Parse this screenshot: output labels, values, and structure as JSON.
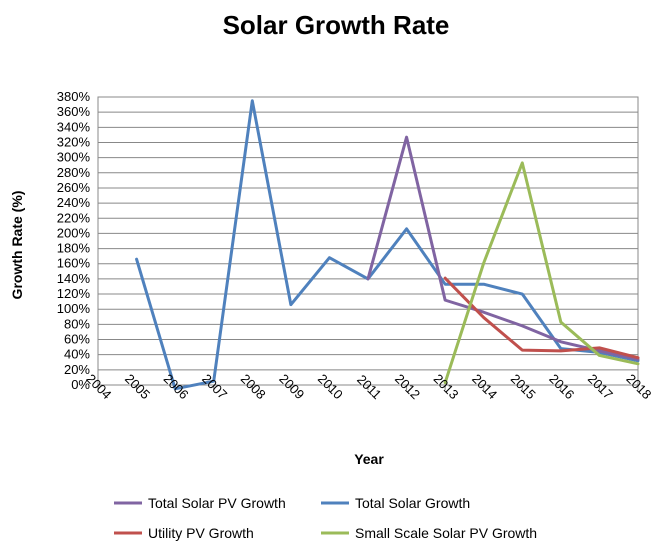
{
  "chart_data": {
    "type": "line",
    "title": "Solar Growth Rate",
    "xlabel": "Year",
    "ylabel": "Growth Rate (%)",
    "categories": [
      "2004",
      "2005",
      "2006",
      "2007",
      "2008",
      "2009",
      "2010",
      "2011",
      "2012",
      "2013",
      "2014",
      "2015",
      "2016",
      "2017",
      "2018"
    ],
    "y_ticks": [
      "0%",
      "20%",
      "40%",
      "60%",
      "80%",
      "100%",
      "120%",
      "140%",
      "160%",
      "180%",
      "200%",
      "220%",
      "240%",
      "260%",
      "280%",
      "300%",
      "320%",
      "340%",
      "360%",
      "380%"
    ],
    "ylim": [
      0,
      380
    ],
    "grid": true,
    "legend_position": "bottom",
    "series": [
      {
        "name": "Total Solar PV Growth",
        "color": "#8064a2",
        "values": [
          null,
          null,
          null,
          null,
          null,
          null,
          null,
          140,
          327,
          112,
          96,
          78,
          57,
          45,
          34
        ]
      },
      {
        "name": "Total Solar Growth",
        "color": "#4f81bd",
        "values": [
          null,
          166,
          -5,
          5,
          375,
          106,
          168,
          140,
          206,
          133,
          133,
          120,
          48,
          43,
          32
        ]
      },
      {
        "name": "Utility PV Growth",
        "color": "#c0504d",
        "values": [
          null,
          null,
          null,
          null,
          null,
          null,
          null,
          null,
          null,
          141,
          89,
          46,
          45,
          49,
          36
        ]
      },
      {
        "name": "Small Scale Solar PV Growth",
        "color": "#9bbb59",
        "values": [
          null,
          null,
          null,
          null,
          null,
          null,
          null,
          null,
          null,
          3,
          161,
          293,
          83,
          39,
          28
        ]
      }
    ]
  }
}
